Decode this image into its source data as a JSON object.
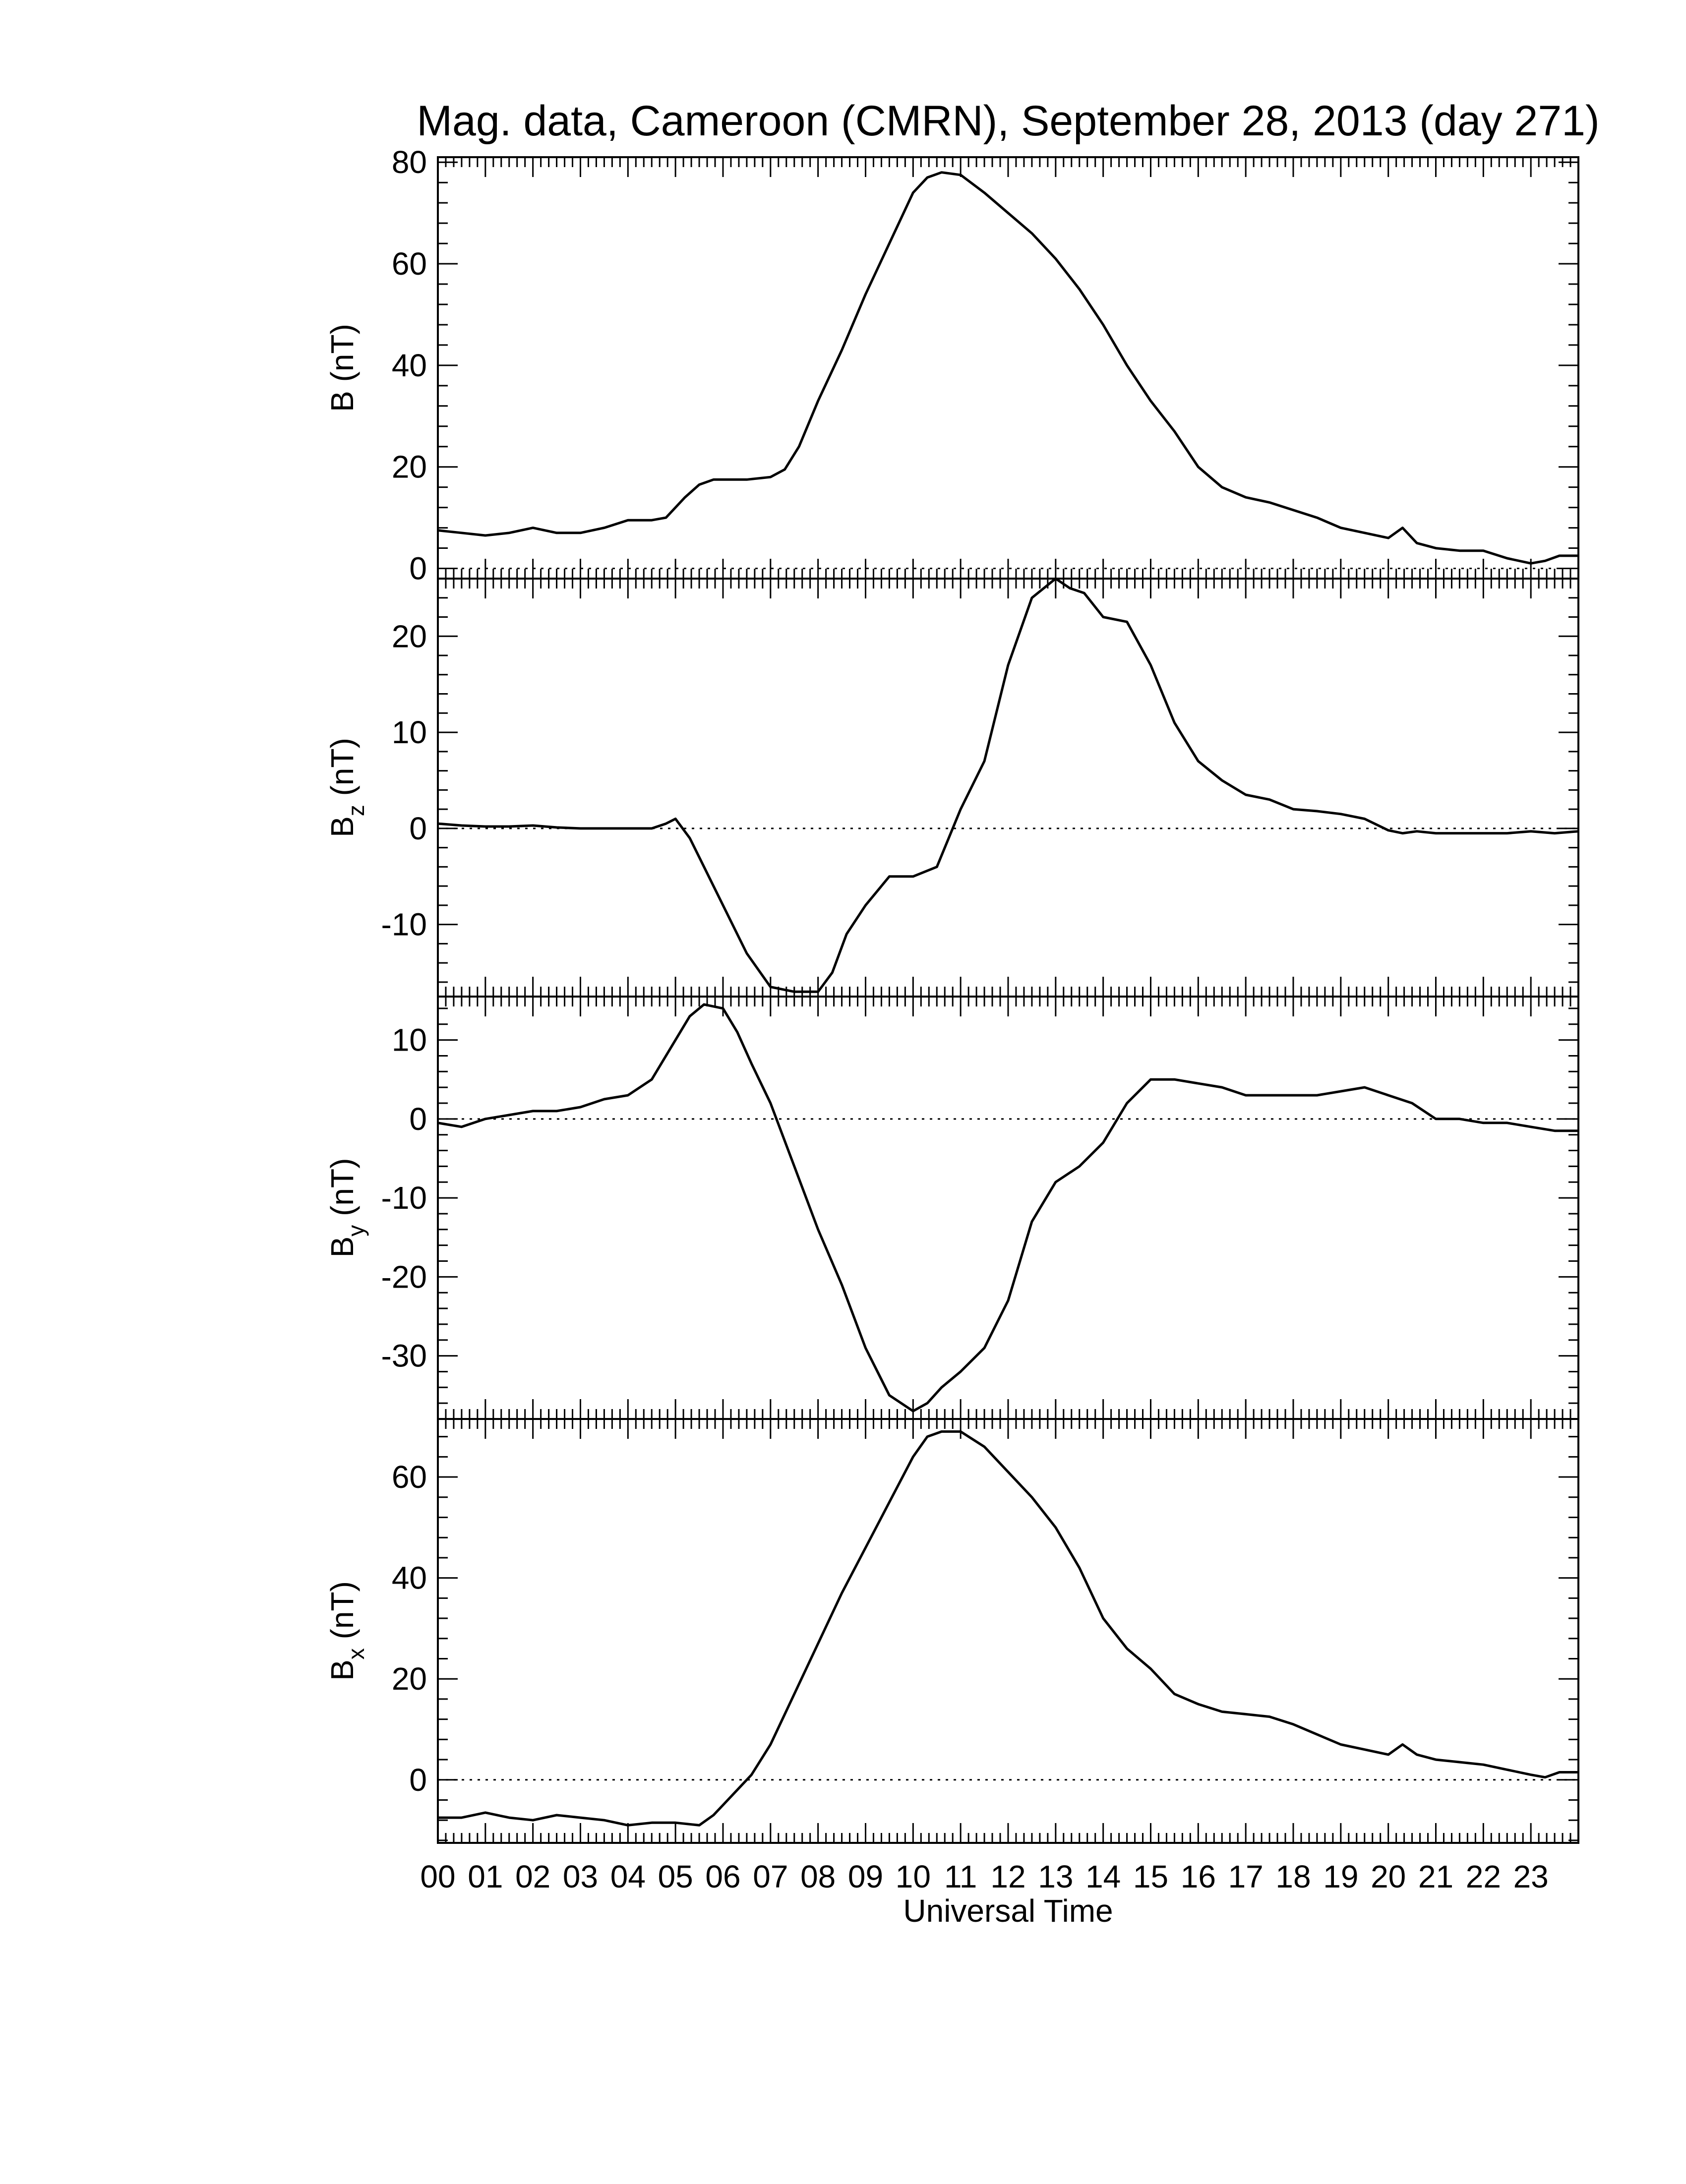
{
  "title": "Mag. data, Cameroon (CMRN), September 28, 2013 (day 271)",
  "x_axis": {
    "label": "Universal Time",
    "ticks": [
      "00",
      "01",
      "02",
      "03",
      "04",
      "05",
      "06",
      "07",
      "08",
      "09",
      "10",
      "11",
      "12",
      "13",
      "14",
      "15",
      "16",
      "17",
      "18",
      "19",
      "20",
      "21",
      "22",
      "23"
    ]
  },
  "panels": [
    {
      "id": "B",
      "ylabel_main": "B",
      "ylabel_sub": "",
      "ylabel_unit": "(nT)"
    },
    {
      "id": "Bz",
      "ylabel_main": "B",
      "ylabel_sub": "z",
      "ylabel_unit": "(nT)"
    },
    {
      "id": "By",
      "ylabel_main": "B",
      "ylabel_sub": "y",
      "ylabel_unit": "(nT)"
    },
    {
      "id": "Bx",
      "ylabel_main": "B",
      "ylabel_sub": "x",
      "ylabel_unit": "(nT)"
    }
  ],
  "colors": {
    "line": "#000000",
    "zero_line": "#000000",
    "frame": "#000000"
  },
  "chart_data": [
    {
      "type": "line",
      "panel": "B",
      "title": "Mag. data, Cameroon (CMRN), September 28, 2013 (day 271)",
      "xlabel": "",
      "ylabel": "B (nT)",
      "xlim": [
        0,
        24
      ],
      "ylim": [
        -2,
        81
      ],
      "yticks": [
        0,
        20,
        40,
        60,
        80
      ],
      "zero_line": true,
      "series": [
        {
          "x": [
            0,
            0.5,
            1,
            1.5,
            2,
            2.5,
            3,
            3.5,
            4,
            4.5,
            4.8,
            5.2,
            5.5,
            5.8,
            6,
            6.5,
            7,
            7.3,
            7.6,
            8,
            8.5,
            9,
            9.5,
            10,
            10.3,
            10.6,
            11,
            11.5,
            12,
            12.5,
            13,
            13.5,
            14,
            14.5,
            15,
            15.5,
            16,
            16.5,
            17,
            17.5,
            18,
            18.5,
            19,
            19.5,
            20,
            20.3,
            20.6,
            21,
            21.5,
            22,
            22.5,
            23,
            23.3,
            23.6,
            24
          ],
          "y": [
            7.5,
            7,
            6.5,
            7,
            8,
            7,
            7,
            8,
            9.5,
            9.5,
            10,
            14,
            16.5,
            17.5,
            17.5,
            17.5,
            18,
            19.5,
            24,
            33,
            43,
            54,
            64,
            74,
            77,
            78,
            77.5,
            74,
            70,
            66,
            61,
            55,
            48,
            40,
            33,
            27,
            20,
            16,
            14,
            13,
            11.5,
            10,
            8,
            7,
            6,
            8,
            5,
            4,
            3.5,
            3.5,
            2,
            1,
            1.5,
            2.5,
            2.5
          ]
        }
      ]
    },
    {
      "type": "line",
      "panel": "Bz",
      "title": "",
      "xlabel": "",
      "ylabel": "Bz (nT)",
      "xlim": [
        0,
        24
      ],
      "ylim": [
        -17.5,
        26
      ],
      "yticks": [
        -10,
        0,
        10,
        20
      ],
      "zero_line": true,
      "series": [
        {
          "x": [
            0,
            0.5,
            1,
            1.5,
            2,
            2.5,
            3,
            3.5,
            4,
            4.5,
            4.8,
            5,
            5.3,
            5.6,
            6,
            6.5,
            7,
            7.5,
            8,
            8.3,
            8.6,
            9,
            9.5,
            10,
            10.5,
            11,
            11.5,
            12,
            12.5,
            13,
            13.3,
            13.6,
            14,
            14.5,
            15,
            15.5,
            16,
            16.5,
            17,
            17.5,
            18,
            18.5,
            19,
            19.5,
            20,
            20.3,
            20.6,
            21,
            21.5,
            22,
            22.5,
            23,
            23.5,
            24
          ],
          "y": [
            0.5,
            0.3,
            0.2,
            0.2,
            0.3,
            0.1,
            0,
            0,
            0,
            0,
            0.5,
            1,
            -1,
            -4,
            -8,
            -13,
            -16.5,
            -17,
            -17,
            -15,
            -11,
            -8,
            -5,
            -5,
            -4,
            2,
            7,
            17,
            24,
            26,
            25,
            24.5,
            22,
            21.5,
            17,
            11,
            7,
            5,
            3.5,
            3,
            2,
            1.8,
            1.5,
            1,
            -0.2,
            -0.5,
            -0.3,
            -0.5,
            -0.5,
            -0.5,
            -0.5,
            -0.3,
            -0.5,
            -0.3
          ]
        }
      ]
    },
    {
      "type": "line",
      "panel": "By",
      "title": "",
      "xlabel": "",
      "ylabel": "By (nT)",
      "xlim": [
        0,
        24
      ],
      "ylim": [
        -38,
        15.5
      ],
      "yticks": [
        -30,
        -20,
        -10,
        0,
        10
      ],
      "zero_line": true,
      "series": [
        {
          "x": [
            0,
            0.5,
            1,
            1.5,
            2,
            2.5,
            3,
            3.5,
            4,
            4.5,
            5,
            5.3,
            5.6,
            6,
            6.3,
            6.6,
            7,
            7.5,
            8,
            8.5,
            9,
            9.5,
            10,
            10.3,
            10.6,
            11,
            11.5,
            12,
            12.5,
            13,
            13.5,
            14,
            14.5,
            15,
            15.5,
            16,
            16.5,
            17,
            17.5,
            18,
            18.5,
            19,
            19.5,
            20,
            20.5,
            21,
            21.5,
            22,
            22.5,
            23,
            23.5,
            24
          ],
          "y": [
            -0.5,
            -1,
            0,
            0.5,
            1,
            1,
            1.5,
            2.5,
            3,
            5,
            10,
            13,
            14.5,
            14,
            11,
            7,
            2,
            -6,
            -14,
            -21,
            -29,
            -35,
            -37,
            -36,
            -34,
            -32,
            -29,
            -23,
            -13,
            -8,
            -6,
            -3,
            2,
            5,
            5,
            4.5,
            4,
            3,
            3,
            3,
            3,
            3.5,
            4,
            3,
            2,
            0,
            0,
            -0.5,
            -0.5,
            -1,
            -1.5,
            -1.5
          ]
        }
      ]
    },
    {
      "type": "line",
      "panel": "Bx",
      "title": "",
      "xlabel": "Universal Time",
      "ylabel": "Bx (nT)",
      "xlim": [
        0,
        24
      ],
      "ylim": [
        -12.5,
        71.5
      ],
      "yticks": [
        0,
        20,
        40,
        60
      ],
      "zero_line": true,
      "series": [
        {
          "x": [
            0,
            0.5,
            1,
            1.5,
            2,
            2.5,
            3,
            3.5,
            4,
            4.5,
            5,
            5.5,
            5.8,
            6,
            6.3,
            6.6,
            7,
            7.5,
            8,
            8.5,
            9,
            9.5,
            10,
            10.3,
            10.6,
            11,
            11.5,
            12,
            12.5,
            13,
            13.5,
            14,
            14.5,
            15,
            15.5,
            16,
            16.5,
            17,
            17.5,
            18,
            18.5,
            19,
            19.5,
            20,
            20.3,
            20.6,
            21,
            21.5,
            22,
            22.5,
            23,
            23.3,
            23.6,
            24
          ],
          "y": [
            -7.5,
            -7.5,
            -6.5,
            -7.5,
            -8,
            -7,
            -7.5,
            -8,
            -9,
            -8.5,
            -8.5,
            -9,
            -7,
            -5,
            -2,
            1,
            7,
            17,
            27,
            37,
            46,
            55,
            64,
            68,
            69,
            69,
            66,
            61,
            56,
            50,
            42,
            32,
            26,
            22,
            17,
            15,
            13.5,
            13,
            12.5,
            11,
            9,
            7,
            6,
            5,
            7,
            5,
            4,
            3.5,
            3,
            2,
            1,
            0.5,
            1.5,
            1.5
          ]
        }
      ]
    }
  ]
}
